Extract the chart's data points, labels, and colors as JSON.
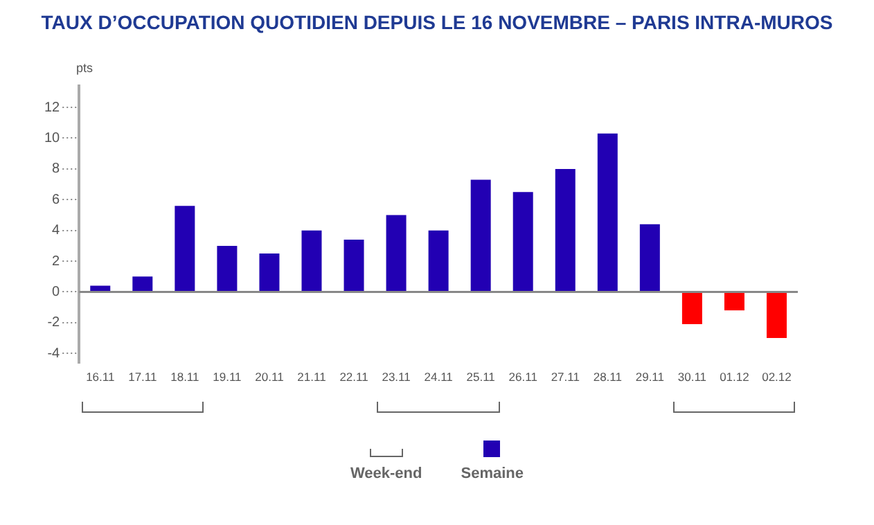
{
  "chart_data": {
    "type": "bar",
    "title": "TAUX D’OCCUPATION QUOTIDIEN DEPUIS LE 16 NOVEMBRE – PARIS INTRA-MUROS",
    "ylabel": "pts",
    "categories": [
      "16.11",
      "17.11",
      "18.11",
      "19.11",
      "20.11",
      "21.11",
      "22.11",
      "23.11",
      "24.11",
      "25.11",
      "26.11",
      "27.11",
      "28.11",
      "29.11",
      "30.11",
      "01.12",
      "02.12"
    ],
    "series": [
      {
        "name": "Semaine",
        "color": "#2200b3",
        "values": [
          0.4,
          1.0,
          5.6,
          3.0,
          2.5,
          4.0,
          3.4,
          5.0,
          4.0,
          7.3,
          6.5,
          8.0,
          10.3,
          4.4,
          -2.1,
          -1.2,
          -3.0
        ],
        "colors": [
          "#2200b3",
          "#2200b3",
          "#2200b3",
          "#2200b3",
          "#2200b3",
          "#2200b3",
          "#2200b3",
          "#2200b3",
          "#2200b3",
          "#2200b3",
          "#2200b3",
          "#2200b3",
          "#2200b3",
          "#2200b3",
          "#ff0000",
          "#ff0000",
          "#ff0000"
        ]
      }
    ],
    "ylim": [
      -4.6,
      13.4
    ],
    "yticks": [
      -4,
      -2,
      0,
      2,
      4,
      6,
      8,
      10,
      12
    ],
    "grid": "y",
    "legend": "bottom",
    "annotations": [
      "Week-end"
    ]
  }
}
